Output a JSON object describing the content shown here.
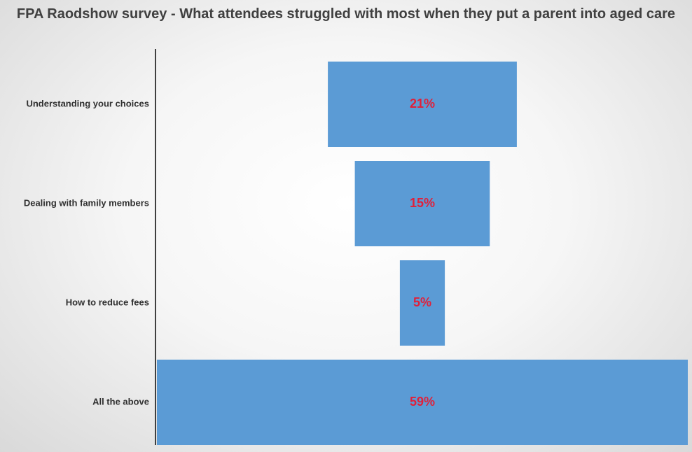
{
  "chart_data": {
    "type": "bar",
    "orientation": "horizontal",
    "style": "funnel",
    "title": "FPA Raodshow survey - What attendees struggled with most when they put a parent into aged care",
    "categories": [
      "Understanding your choices",
      "Dealing with family members",
      "How to reduce fees",
      "All the above"
    ],
    "values": [
      21,
      15,
      5,
      59
    ],
    "value_labels": [
      "21%",
      "15%",
      "5%",
      "59%"
    ],
    "unit": "%",
    "grid": false,
    "legend": "none",
    "colors": {
      "bar": "#5b9bd5",
      "data_label": "#e0203a",
      "axis": "#404040",
      "text": "#303030"
    }
  }
}
